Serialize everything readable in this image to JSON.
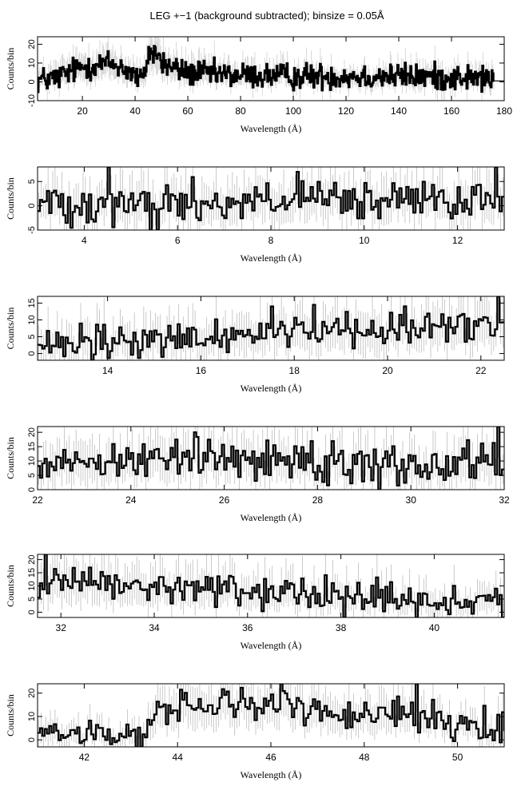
{
  "title": "LEG +−1 (background subtracted); binsize = 0.05Å",
  "chart_data": [
    {
      "type": "line",
      "style": "histogram-step with error bars",
      "xlabel": "Wavelength (Å)",
      "ylabel": "Counts/bin",
      "xlim": [
        3,
        180
      ],
      "ylim": [
        -10,
        24
      ],
      "xticks": [
        20,
        40,
        60,
        80,
        100,
        120,
        140,
        160,
        180
      ],
      "yticks": [
        -10,
        0,
        10,
        20
      ],
      "envelope_x": [
        3,
        10,
        15,
        20,
        25,
        30,
        35,
        38,
        40,
        42,
        43,
        44,
        45,
        47,
        49,
        50,
        55,
        60,
        70,
        80,
        100,
        120,
        140,
        160,
        170,
        176
      ],
      "envelope_y": [
        1,
        2,
        5,
        8,
        9,
        10,
        8,
        5,
        3,
        1,
        0,
        8,
        15,
        16,
        14,
        10,
        7,
        5,
        4,
        3.5,
        3,
        3,
        3,
        2.5,
        2,
        1.5
      ],
      "noise_amp": 3.5,
      "data_xmax": 176,
      "tail_value": 0.5
    },
    {
      "type": "line",
      "style": "histogram-step with error bars",
      "xlabel": "Wavelength (Å)",
      "ylabel": "Counts/bin",
      "xlim": [
        3,
        13
      ],
      "ylim": [
        -5,
        8
      ],
      "xticks": [
        4,
        6,
        8,
        10,
        12
      ],
      "yticks": [
        -5,
        0,
        5
      ],
      "envelope_x": [
        3,
        4.5,
        6,
        8,
        9,
        10,
        11,
        12,
        13
      ],
      "envelope_y": [
        0.5,
        1,
        0.5,
        1,
        1,
        0.5,
        1,
        0.5,
        1
      ],
      "noise_amp": 2.2,
      "spikes": [
        [
          4.5,
          8
        ],
        [
          5.6,
          -5
        ],
        [
          8.6,
          7
        ],
        [
          12.8,
          8
        ],
        [
          5.4,
          -5
        ]
      ]
    },
    {
      "type": "line",
      "style": "histogram-step with error bars",
      "xlabel": "Wavelength (Å)",
      "ylabel": "Counts/bin",
      "xlim": [
        12.5,
        22.5
      ],
      "ylim": [
        -2,
        17
      ],
      "xticks": [
        14,
        16,
        18,
        20,
        22
      ],
      "yticks": [
        0,
        5,
        10,
        15
      ],
      "envelope_x": [
        12.5,
        14,
        16,
        17,
        18,
        19,
        20,
        21,
        22,
        22.5
      ],
      "envelope_y": [
        1.5,
        3,
        4.5,
        6,
        8,
        7,
        8,
        8,
        8,
        10
      ],
      "noise_amp": 2.8,
      "spikes": [
        [
          22.4,
          17
        ],
        [
          15.2,
          -1
        ],
        [
          17.5,
          14
        ]
      ]
    },
    {
      "type": "line",
      "style": "histogram-step with error bars",
      "xlabel": "Wavelength (Å)",
      "ylabel": "Counts/bin",
      "xlim": [
        22,
        32
      ],
      "ylim": [
        0,
        22
      ],
      "xticks": [
        22,
        24,
        26,
        28,
        30,
        32
      ],
      "yticks": [
        0,
        5,
        10,
        15,
        20
      ],
      "envelope_x": [
        22,
        23,
        24,
        25,
        26,
        27,
        28,
        29,
        30,
        31,
        32
      ],
      "envelope_y": [
        10,
        10,
        11,
        11,
        11,
        11,
        10.5,
        10,
        9,
        9,
        10
      ],
      "noise_amp": 3.5,
      "spikes": [
        [
          31.9,
          22
        ],
        [
          25.4,
          20
        ],
        [
          29.3,
          0
        ]
      ]
    },
    {
      "type": "line",
      "style": "histogram-step with error bars",
      "xlabel": "Wavelength (Å)",
      "ylabel": "Counts/bin",
      "xlim": [
        31.5,
        41.5
      ],
      "ylim": [
        -2,
        22
      ],
      "xticks": [
        32,
        34,
        36,
        38,
        40
      ],
      "yticks": [
        0,
        5,
        10,
        15,
        20
      ],
      "yticks_text": "0 5 101520",
      "envelope_x": [
        31.5,
        33,
        35,
        36,
        37,
        38,
        39,
        40,
        41,
        41.5
      ],
      "envelope_y": [
        10,
        10,
        9,
        8,
        7,
        6,
        5,
        4,
        2.5,
        2
      ],
      "noise_amp": 3.2,
      "spikes": [
        [
          31.7,
          22
        ],
        [
          32.6,
          17
        ],
        [
          39.6,
          -2
        ]
      ]
    },
    {
      "type": "line",
      "style": "histogram-step with error bars",
      "xlabel": "Wavelength (Å)",
      "ylabel": "Counts/bin",
      "xlim": [
        41,
        51
      ],
      "ylim": [
        -3,
        24
      ],
      "xticks": [
        42,
        44,
        46,
        48,
        50
      ],
      "yticks": [
        0,
        10,
        20
      ],
      "envelope_x": [
        41,
        42,
        43,
        43.3,
        43.6,
        44,
        45,
        46,
        47,
        48,
        49,
        50,
        51
      ],
      "envelope_y": [
        4,
        2,
        3,
        3,
        12,
        15,
        15,
        15,
        13,
        12,
        11,
        8,
        5
      ],
      "noise_amp": 3.5,
      "spikes": [
        [
          46.2,
          24
        ],
        [
          49.1,
          24
        ],
        [
          43.1,
          -3
        ]
      ]
    }
  ]
}
